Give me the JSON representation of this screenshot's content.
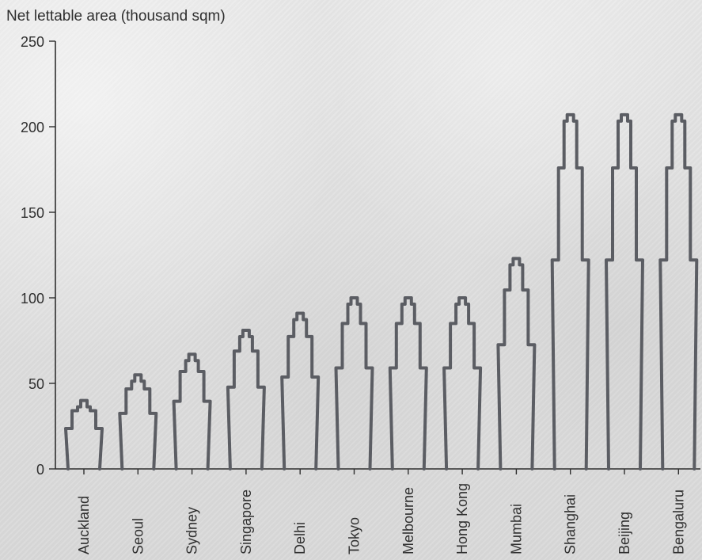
{
  "chart_data": {
    "type": "bar",
    "title": "",
    "subtitle": "",
    "ylabel": "Net lettable area (thousand sqm)",
    "xlabel": "",
    "categories": [
      "Auckland",
      "Seoul",
      "Sydney",
      "Singapore",
      "Delhi",
      "Tokyo",
      "Melbourne",
      "Hong Kong",
      "Mumbai",
      "Shanghai",
      "Beijing",
      "Bengaluru"
    ],
    "values": [
      40,
      55,
      67,
      81,
      91,
      100,
      100,
      100,
      123,
      207,
      207,
      207
    ],
    "ylim": [
      0,
      250
    ],
    "yticks": [
      0,
      50,
      100,
      150,
      200,
      250
    ],
    "ytick_labels": [
      "0",
      "50",
      "100",
      "150",
      "200",
      "250"
    ],
    "grid": false,
    "legend": "none",
    "colors": {
      "stroke": "#5b5d63",
      "axis": "#2f2f2f",
      "text": "#2f2f2f"
    }
  }
}
